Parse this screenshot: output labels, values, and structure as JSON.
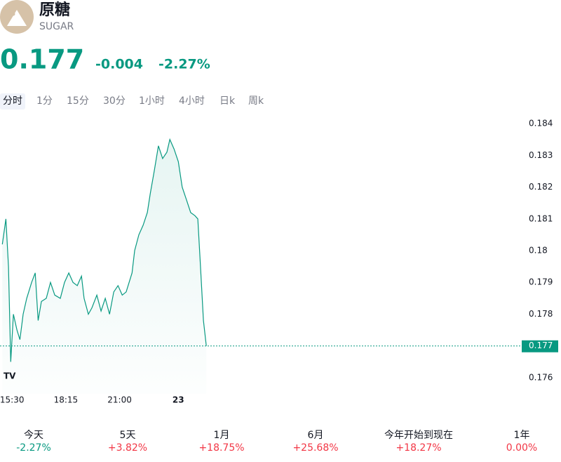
{
  "header": {
    "name": "原糖",
    "symbol": "SUGAR"
  },
  "quote": {
    "price": "0.177",
    "change": "-0.004",
    "change_percent": "-2.27%"
  },
  "tabs": [
    "分时",
    "1分",
    "15分",
    "30分",
    "1小时",
    "4小时",
    "日k",
    "周k"
  ],
  "chart": {
    "type": "line",
    "color": "#089981",
    "x": [
      -30,
      -19,
      -11,
      -4,
      4,
      15,
      24,
      34,
      45,
      60,
      71,
      80,
      90,
      105,
      118,
      131,
      148,
      161,
      174,
      187,
      200,
      213,
      221,
      234,
      245,
      260,
      273,
      286,
      299,
      312,
      325,
      338,
      350,
      368,
      376,
      389,
      402,
      415,
      424,
      436,
      449,
      462,
      475,
      484,
      497,
      510,
      522,
      535,
      548,
      561,
      570,
      578,
      587,
      596
    ],
    "values": [
      0.1802,
      0.181,
      0.1795,
      0.1765,
      0.178,
      0.1775,
      0.1772,
      0.178,
      0.1785,
      0.179,
      0.1793,
      0.1778,
      0.1784,
      0.1785,
      0.179,
      0.1786,
      0.1785,
      0.179,
      0.1793,
      0.179,
      0.1789,
      0.1792,
      0.1785,
      0.178,
      0.1782,
      0.1786,
      0.1781,
      0.1785,
      0.178,
      0.1787,
      0.1789,
      0.1786,
      0.1787,
      0.1793,
      0.18,
      0.1805,
      0.1808,
      0.1812,
      0.1818,
      0.1825,
      0.1833,
      0.1829,
      0.1831,
      0.1835,
      0.1832,
      0.1828,
      0.182,
      0.1816,
      0.1812,
      0.1811,
      0.181,
      0.1795,
      0.1778,
      0.177
    ],
    "xlim": [
      -37,
      1555
    ],
    "ylim": [
      0.1755,
      0.1845
    ],
    "yticks": [
      0.176,
      0.177,
      0.178,
      0.179,
      0.18,
      0.181,
      0.182,
      0.183,
      0.184
    ],
    "xticks": [
      {
        "value": 0,
        "label": "15:30"
      },
      {
        "value": 165,
        "label": "18:15"
      },
      {
        "value": 330,
        "label": "21:00"
      },
      {
        "value": 510,
        "label": "23"
      }
    ],
    "last_value": 0.177
  },
  "performance": [
    {
      "period": "今天",
      "change": "-2.27%",
      "color": "#089981"
    },
    {
      "period": "5天",
      "change": "+3.82%",
      "color": "#f23645"
    },
    {
      "period": "1月",
      "change": "+18.75%",
      "color": "#f23645"
    },
    {
      "period": "6月",
      "change": "+25.68%",
      "color": "#f23645"
    },
    {
      "period": "今年开始到现在",
      "change": "+18.27%",
      "color": "#f23645"
    },
    {
      "period": "1年",
      "change": "0.00%",
      "color": "#f23645"
    }
  ]
}
